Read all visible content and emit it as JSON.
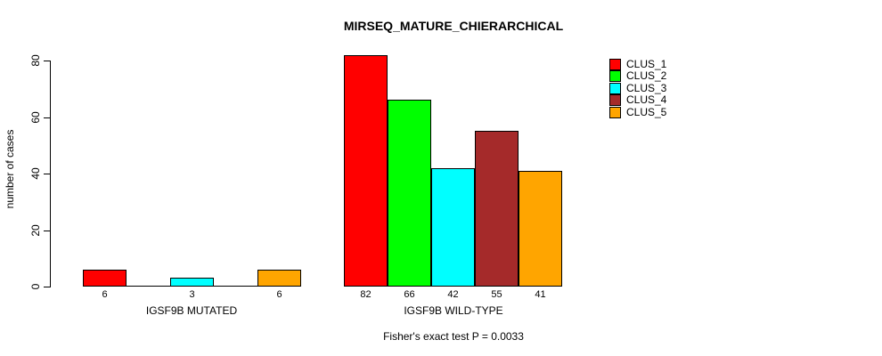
{
  "chart_data": {
    "type": "bar",
    "title": "MIRSEQ_MATURE_CHIERARCHICAL",
    "ylabel": "number of cases",
    "xlabel": "",
    "ylim": [
      0,
      80
    ],
    "yticks": [
      0,
      20,
      40,
      60,
      80
    ],
    "grid": false,
    "legend_position": "top-right",
    "series": [
      {
        "name": "CLUS_1",
        "color": "#FF0000"
      },
      {
        "name": "CLUS_2",
        "color": "#00FF00"
      },
      {
        "name": "CLUS_3",
        "color": "#00FFFF"
      },
      {
        "name": "CLUS_4",
        "color": "#A52A2A"
      },
      {
        "name": "CLUS_5",
        "color": "#FFA500"
      }
    ],
    "groups": [
      {
        "label": "IGSF9B MUTATED",
        "values": [
          6,
          0,
          3,
          0,
          6
        ],
        "value_labels": [
          "6",
          "",
          "3",
          "",
          "6"
        ]
      },
      {
        "label": "IGSF9B WILD-TYPE",
        "values": [
          82,
          66,
          42,
          55,
          41
        ],
        "value_labels": [
          "82",
          "66",
          "42",
          "55",
          "41"
        ]
      }
    ],
    "annotation": "Fisher's exact test P = 0.0033"
  }
}
